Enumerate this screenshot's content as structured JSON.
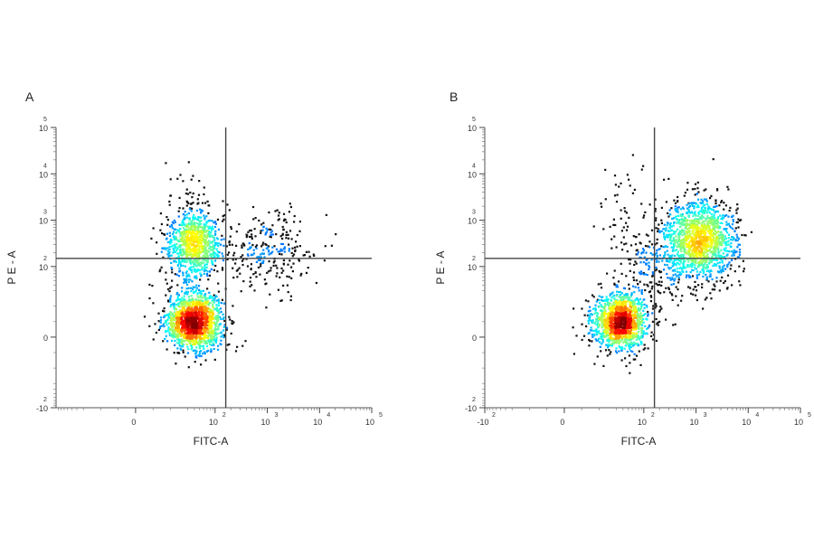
{
  "chart_data": [
    {
      "type": "scatter",
      "panel_label": "A",
      "xlabel": "FITC-A",
      "ylabel": "P E - A",
      "x_scale": "biexponential",
      "y_scale": "biexponential",
      "xlim": [
        -100,
        100000
      ],
      "ylim": [
        -100,
        100000
      ],
      "x_ticks": [
        {
          "base": "0",
          "exp": ""
        },
        {
          "base": "10",
          "exp": "2"
        },
        {
          "base": "10",
          "exp": "3"
        },
        {
          "base": "10",
          "exp": "4"
        },
        {
          "base": "10",
          "exp": "5"
        }
      ],
      "y_ticks": [
        {
          "base": "-10",
          "exp": "2"
        },
        {
          "base": "0",
          "exp": ""
        },
        {
          "base": "10",
          "exp": "2"
        },
        {
          "base": "10",
          "exp": "3"
        },
        {
          "base": "10",
          "exp": "4"
        },
        {
          "base": "10",
          "exp": "5"
        }
      ],
      "quadrant_gate": {
        "x": 160,
        "y": 150
      },
      "colormap": "jet density",
      "populations": [
        {
          "x_center": 40,
          "y_center": 10,
          "x_spread": 0.18,
          "y_spread": 0.2,
          "count": 1500
        },
        {
          "x_center": 40,
          "y_center": 300,
          "x_spread": 0.18,
          "y_spread": 0.25,
          "count": 900
        },
        {
          "x_center": 1000,
          "y_center": 200,
          "x_spread": 0.3,
          "y_spread": 0.3,
          "count": 260
        },
        {
          "x_center": 30,
          "y_center": 3000,
          "x_spread": 0.15,
          "y_spread": 0.25,
          "count": 30
        }
      ]
    },
    {
      "type": "scatter",
      "panel_label": "B",
      "xlabel": "FITC-A",
      "ylabel": "P E - A",
      "x_scale": "biexponential",
      "y_scale": "biexponential",
      "xlim": [
        -100,
        100000
      ],
      "ylim": [
        -100,
        100000
      ],
      "x_ticks": [
        {
          "base": "-10",
          "exp": "2"
        },
        {
          "base": "0",
          "exp": ""
        },
        {
          "base": "10",
          "exp": "2"
        },
        {
          "base": "10",
          "exp": "3"
        },
        {
          "base": "10",
          "exp": "4"
        },
        {
          "base": "10",
          "exp": "5"
        }
      ],
      "y_ticks": [
        {
          "base": "-10",
          "exp": "2"
        },
        {
          "base": "0",
          "exp": ""
        },
        {
          "base": "10",
          "exp": "2"
        },
        {
          "base": "10",
          "exp": "3"
        },
        {
          "base": "10",
          "exp": "4"
        },
        {
          "base": "10",
          "exp": "5"
        }
      ],
      "quadrant_gate": {
        "x": 160,
        "y": 150
      },
      "colormap": "jet density",
      "populations": [
        {
          "x_center": 35,
          "y_center": 10,
          "x_spread": 0.18,
          "y_spread": 0.2,
          "count": 1300
        },
        {
          "x_center": 1200,
          "y_center": 400,
          "x_spread": 0.22,
          "y_spread": 0.28,
          "count": 1300
        },
        {
          "x_center": 250,
          "y_center": 120,
          "x_spread": 0.3,
          "y_spread": 0.3,
          "count": 300
        },
        {
          "x_center": 40,
          "y_center": 2500,
          "x_spread": 0.18,
          "y_spread": 0.35,
          "count": 40
        }
      ]
    }
  ]
}
